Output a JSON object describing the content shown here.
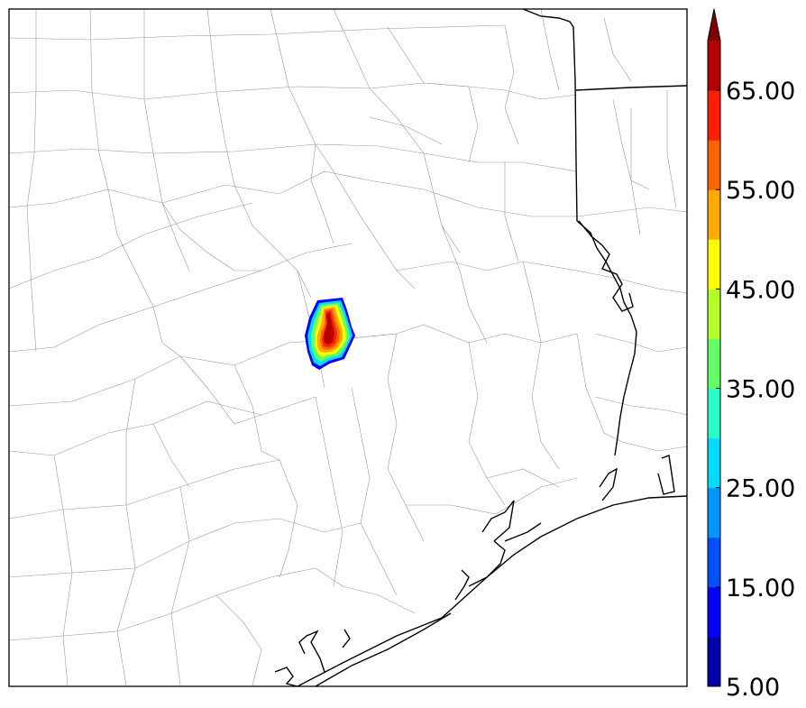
{
  "colorbar": {
    "colors": [
      "#0000a8",
      "#0000ff",
      "#0050ff",
      "#0096ff",
      "#00dcff",
      "#28ffc8",
      "#64ff64",
      "#b4ff28",
      "#ffff00",
      "#ffaa00",
      "#ff6400",
      "#ff1e00",
      "#b40000"
    ],
    "extend_color": "#800000",
    "tick_labels": [
      "5.00",
      "15.00",
      "25.00",
      "35.00",
      "45.00",
      "55.00",
      "65.00"
    ]
  },
  "map_colors": {
    "county_border": "#9a9a9a",
    "state_border": "#000000",
    "coastline": "#000000",
    "frame": "#000000"
  }
}
